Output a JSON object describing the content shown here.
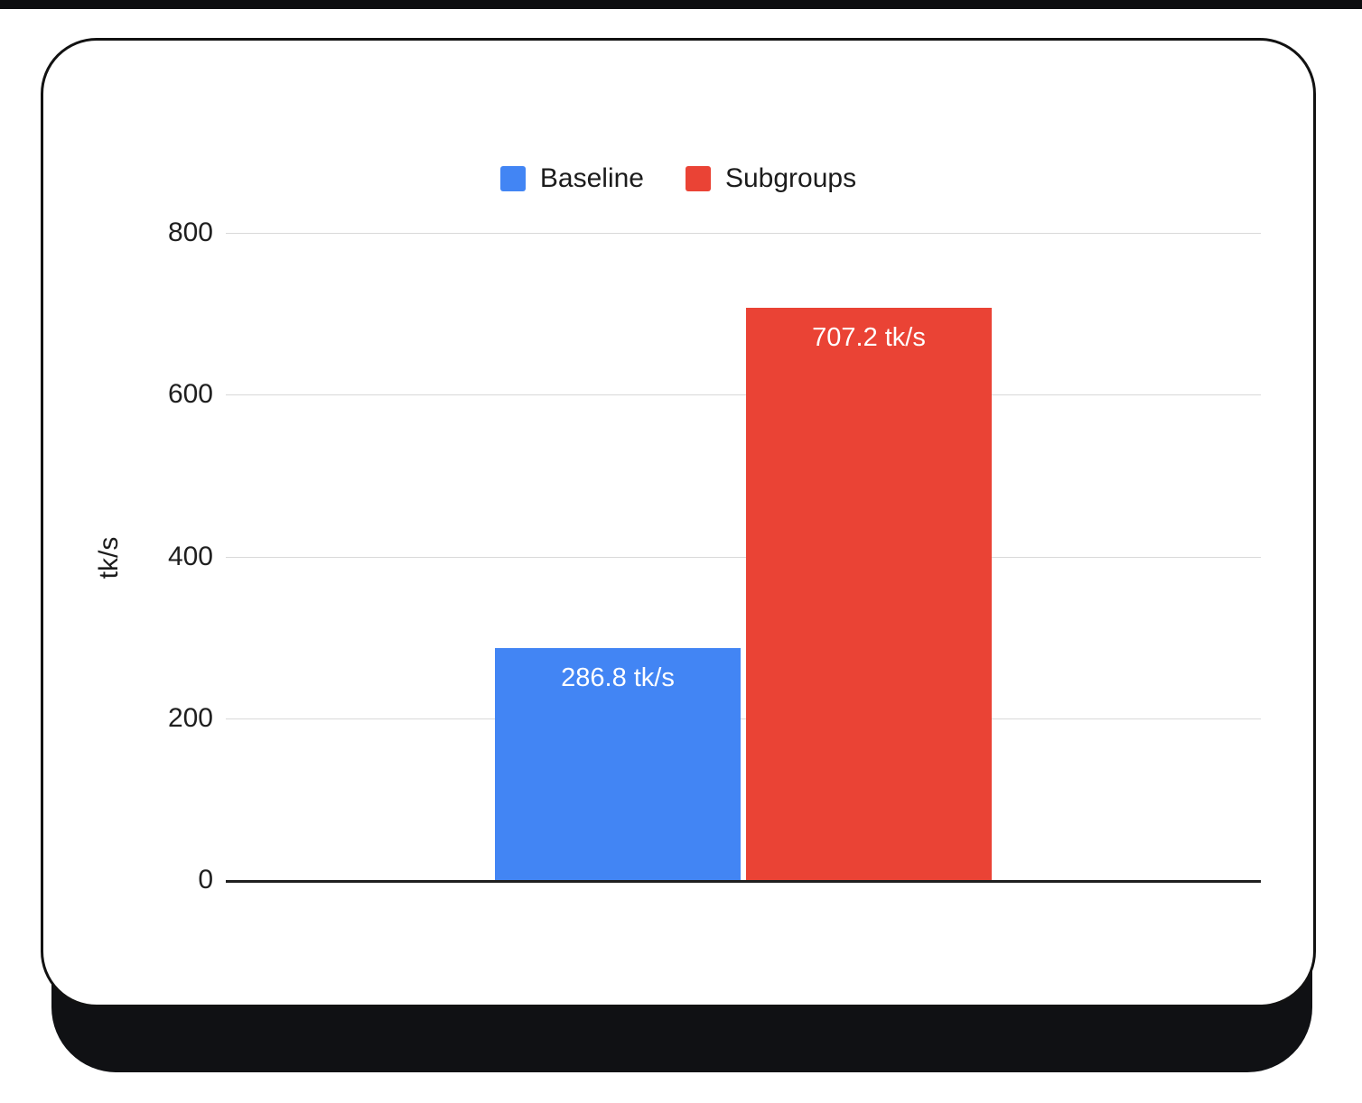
{
  "chart_data": {
    "type": "bar",
    "title": "",
    "categories": [
      "Baseline",
      "Subgroups"
    ],
    "series": [
      {
        "name": "Baseline",
        "value": 286.8,
        "data_label": "286.8 tk/s",
        "color": "#4285F4"
      },
      {
        "name": "Subgroups",
        "value": 707.2,
        "data_label": "707.2 tk/s",
        "color": "#EA4335"
      }
    ],
    "xlabel": "",
    "ylabel": "tk/s",
    "ylim": [
      0,
      800
    ],
    "yticks": [
      0,
      200,
      400,
      600,
      800
    ],
    "grid": true,
    "legend_position": "top-center"
  },
  "legend": {
    "items": [
      {
        "label": "Baseline",
        "color": "#4285F4"
      },
      {
        "label": "Subgroups",
        "color": "#EA4335"
      }
    ]
  },
  "colors": {
    "baseline_bar": "#4285F4",
    "subgroups_bar": "#EA4335",
    "gridline": "#d9d9d9",
    "axis_line": "#1f1f1f",
    "card_border": "#121212",
    "card_shadow": "#101114",
    "tick_text": "#1f1f1f",
    "bar_label_text": "#ffffff",
    "card_background": "#ffffff"
  }
}
